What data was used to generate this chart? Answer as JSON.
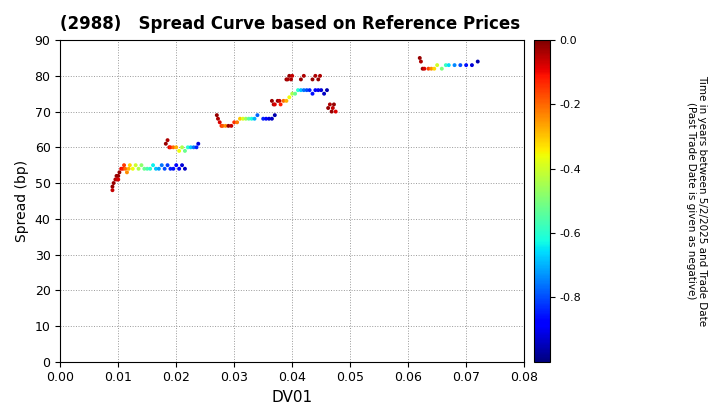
{
  "title": "(2988)   Spread Curve based on Reference Prices",
  "xlabel": "DV01",
  "ylabel": "Spread (bp)",
  "xlim": [
    0.0,
    0.08
  ],
  "ylim": [
    0,
    90
  ],
  "xticks": [
    0.0,
    0.01,
    0.02,
    0.03,
    0.04,
    0.05,
    0.06,
    0.07,
    0.08
  ],
  "yticks": [
    0,
    10,
    20,
    30,
    40,
    50,
    60,
    70,
    80,
    90
  ],
  "colorbar_label": "Time in years between 5/2/2025 and Trade Date\n(Past Trade Date is given as negative)",
  "cmap": "jet",
  "vmin": -1.0,
  "vmax": 0.0,
  "clusters": [
    {
      "dv01": [
        0.009,
        0.009,
        0.0092,
        0.0095,
        0.0097,
        0.0098,
        0.01,
        0.01,
        0.0102,
        0.0105,
        0.0108,
        0.011,
        0.0112,
        0.0115,
        0.0118,
        0.012,
        0.0125,
        0.013,
        0.0135,
        0.014,
        0.0145,
        0.015,
        0.0155,
        0.016,
        0.0165,
        0.017,
        0.0175,
        0.018,
        0.0185,
        0.019,
        0.0195,
        0.02,
        0.0205,
        0.021,
        0.0215
      ],
      "spread": [
        49,
        48,
        50,
        51,
        52,
        51,
        52,
        51,
        53,
        54,
        54,
        55,
        54,
        53,
        54,
        55,
        54,
        55,
        54,
        55,
        54,
        54,
        54,
        55,
        54,
        54,
        55,
        54,
        55,
        54,
        54,
        55,
        54,
        55,
        54
      ],
      "time": [
        -0.02,
        -0.06,
        -0.02,
        -0.04,
        -0.02,
        -0.06,
        -0.02,
        -0.08,
        -0.02,
        -0.1,
        -0.12,
        -0.15,
        -0.2,
        -0.24,
        -0.28,
        -0.32,
        -0.36,
        -0.4,
        -0.44,
        -0.48,
        -0.52,
        -0.56,
        -0.6,
        -0.64,
        -0.68,
        -0.72,
        -0.76,
        -0.8,
        -0.82,
        -0.84,
        -0.86,
        -0.88,
        -0.9,
        -0.92,
        -0.94
      ]
    },
    {
      "dv01": [
        0.0182,
        0.0185,
        0.0188,
        0.019,
        0.0195,
        0.02,
        0.0205,
        0.021,
        0.0215,
        0.022,
        0.0225,
        0.023,
        0.0235,
        0.0238
      ],
      "spread": [
        61,
        62,
        60,
        60,
        60,
        60,
        59,
        60,
        59,
        60,
        60,
        60,
        60,
        61
      ],
      "time": [
        -0.02,
        -0.04,
        -0.08,
        -0.12,
        -0.2,
        -0.28,
        -0.36,
        -0.44,
        -0.52,
        -0.6,
        -0.68,
        -0.76,
        -0.84,
        -0.92
      ]
    },
    {
      "dv01": [
        0.027,
        0.0272,
        0.0275,
        0.0278,
        0.028,
        0.0285,
        0.029,
        0.0295,
        0.03,
        0.0305,
        0.031,
        0.0315,
        0.032,
        0.0325,
        0.033,
        0.0335,
        0.034,
        0.035,
        0.0355,
        0.036,
        0.0365,
        0.037
      ],
      "spread": [
        69,
        68,
        67,
        66,
        66,
        66,
        66,
        66,
        67,
        67,
        68,
        68,
        68,
        68,
        68,
        68,
        69,
        68,
        68,
        68,
        68,
        69
      ],
      "time": [
        -0.02,
        -0.04,
        -0.08,
        -0.14,
        -0.18,
        -0.24,
        -0.02,
        -0.06,
        -0.14,
        -0.22,
        -0.3,
        -0.38,
        -0.46,
        -0.54,
        -0.62,
        -0.7,
        -0.78,
        -0.84,
        -0.88,
        -0.92,
        -0.94,
        -0.96
      ]
    },
    {
      "dv01": [
        0.0365,
        0.0368,
        0.037,
        0.0375,
        0.0378,
        0.038,
        0.0385,
        0.039,
        0.0395,
        0.04,
        0.0405,
        0.041,
        0.0415,
        0.042,
        0.0425,
        0.043,
        0.0435,
        0.044,
        0.0445,
        0.045,
        0.0455,
        0.046
      ],
      "spread": [
        73,
        72,
        72,
        73,
        73,
        72,
        73,
        73,
        74,
        75,
        75,
        76,
        76,
        76,
        76,
        76,
        75,
        76,
        76,
        76,
        75,
        76
      ],
      "time": [
        -0.02,
        -0.04,
        -0.08,
        -0.02,
        -0.06,
        -0.12,
        -0.2,
        -0.28,
        -0.36,
        -0.44,
        -0.52,
        -0.6,
        -0.68,
        -0.76,
        -0.8,
        -0.84,
        -0.86,
        -0.88,
        -0.9,
        -0.92,
        -0.94,
        -0.96
      ]
    },
    {
      "dv01": [
        0.039,
        0.0392,
        0.0395,
        0.0398,
        0.04,
        0.0415,
        0.042,
        0.0435,
        0.044,
        0.0445,
        0.0448
      ],
      "spread": [
        79,
        79,
        80,
        79,
        80,
        79,
        80,
        79,
        80,
        79,
        80
      ],
      "time": [
        -0.02,
        -0.04,
        -0.02,
        -0.04,
        -0.06,
        -0.02,
        -0.04,
        -0.02,
        -0.04,
        -0.02,
        -0.04
      ]
    },
    {
      "dv01": [
        0.0462,
        0.0465,
        0.0468,
        0.047,
        0.0472,
        0.0475
      ],
      "spread": [
        71,
        72,
        70,
        71,
        72,
        70
      ],
      "time": [
        -0.02,
        -0.04,
        -0.02,
        -0.06,
        -0.02,
        -0.08
      ]
    },
    {
      "dv01": [
        0.062,
        0.0622,
        0.0625,
        0.0628,
        0.0635,
        0.064,
        0.0645,
        0.065,
        0.0658,
        0.0665,
        0.067,
        0.068,
        0.069,
        0.07,
        0.071,
        0.072
      ],
      "spread": [
        85,
        84,
        82,
        82,
        82,
        82,
        82,
        83,
        82,
        83,
        83,
        83,
        83,
        83,
        83,
        84
      ],
      "time": [
        -0.02,
        -0.04,
        -0.02,
        -0.08,
        -0.16,
        -0.24,
        -0.32,
        -0.4,
        -0.5,
        -0.58,
        -0.66,
        -0.74,
        -0.8,
        -0.86,
        -0.92,
        -0.96
      ]
    }
  ]
}
